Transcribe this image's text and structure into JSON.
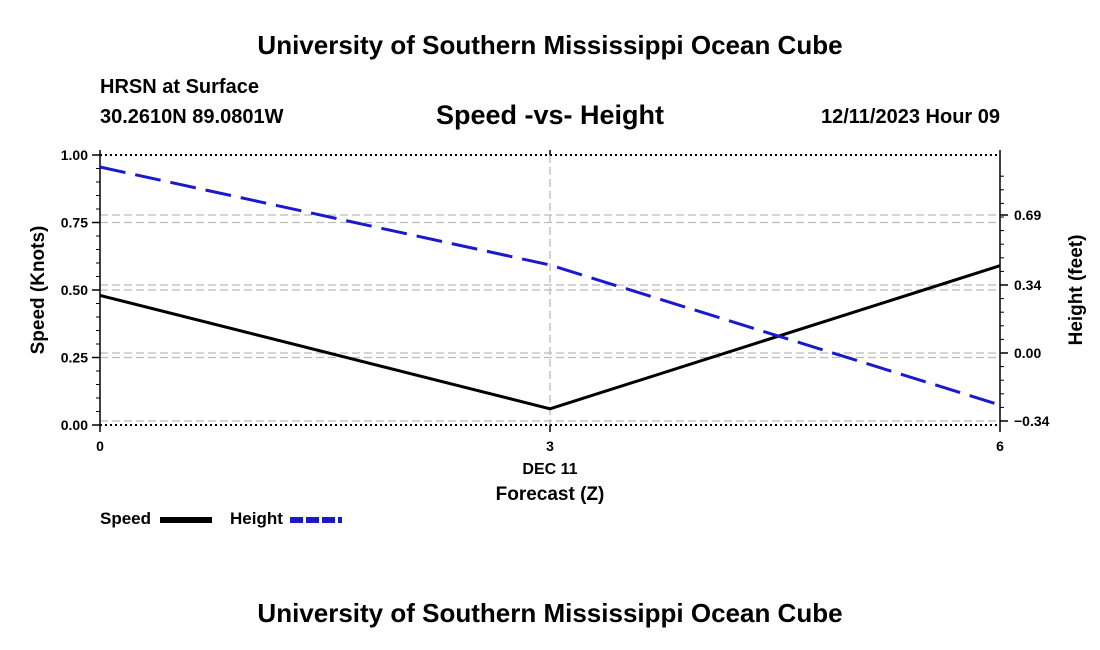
{
  "header": {
    "title": "University of Southern Mississippi Ocean Cube",
    "station": "HRSN at Surface",
    "coords": "30.2610N  89.0801W",
    "datetime": "12/11/2023 Hour 09"
  },
  "footer": {
    "title": "University of Southern Mississippi Ocean Cube"
  },
  "chart_data": {
    "type": "line",
    "title": "Speed -vs- Height",
    "xlabel": "Forecast (Z)",
    "xsublabel": "DEC 11",
    "xlim": [
      0,
      6
    ],
    "xticks": [
      "0",
      "3",
      "6"
    ],
    "y_left": {
      "label": "Speed (Knots)",
      "lim": [
        0,
        1
      ],
      "ticks": [
        "1.00",
        "0.75",
        "0.50",
        "0.25",
        "0.00"
      ],
      "tick_values": [
        1.0,
        0.75,
        0.5,
        0.25,
        0.0
      ]
    },
    "y_right": {
      "label": "Height (feet)",
      "ticks": [
        "0.69",
        "0.34",
        "0.00",
        "−0.34"
      ],
      "tick_values": [
        0.69,
        0.34,
        0.0,
        -0.34
      ]
    },
    "series": [
      {
        "name": "Speed",
        "axis": "left",
        "color": "#000000",
        "style": "solid",
        "x": [
          0,
          3,
          6
        ],
        "values": [
          0.48,
          0.06,
          0.59
        ]
      },
      {
        "name": "Height",
        "axis": "right",
        "color": "#1a1acc",
        "style": "dashed",
        "x": [
          0,
          3,
          6
        ],
        "values": [
          0.93,
          0.44,
          -0.26
        ]
      }
    ],
    "grid": true,
    "legend": "bottom-left"
  },
  "legend": {
    "speed_label": "Speed",
    "height_label": "Height"
  }
}
